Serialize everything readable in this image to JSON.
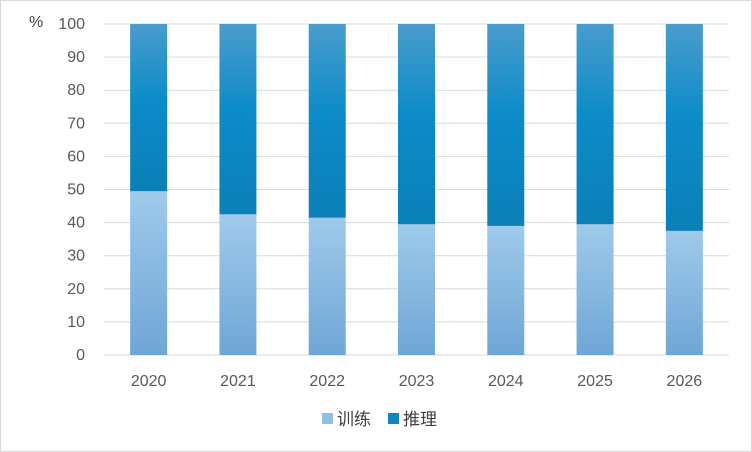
{
  "chart_data": {
    "type": "bar",
    "stacked": true,
    "title": "",
    "xlabel": "",
    "ylabel": "%",
    "ylim": [
      0,
      100
    ],
    "yticks": [
      0,
      10,
      20,
      30,
      40,
      50,
      60,
      70,
      80,
      90,
      100
    ],
    "grid": true,
    "legend_position": "bottom",
    "categories": [
      "2020",
      "2021",
      "2022",
      "2023",
      "2024",
      "2025",
      "2026"
    ],
    "series": [
      {
        "name": "训练",
        "values": [
          49.5,
          42.5,
          41.5,
          39.5,
          39,
          39.5,
          37.5
        ],
        "color": "#8fbfe3"
      },
      {
        "name": "推理",
        "values": [
          50.5,
          57.5,
          58.5,
          60.5,
          61,
          60.5,
          62.5
        ],
        "color": "#0f86c2"
      }
    ]
  }
}
